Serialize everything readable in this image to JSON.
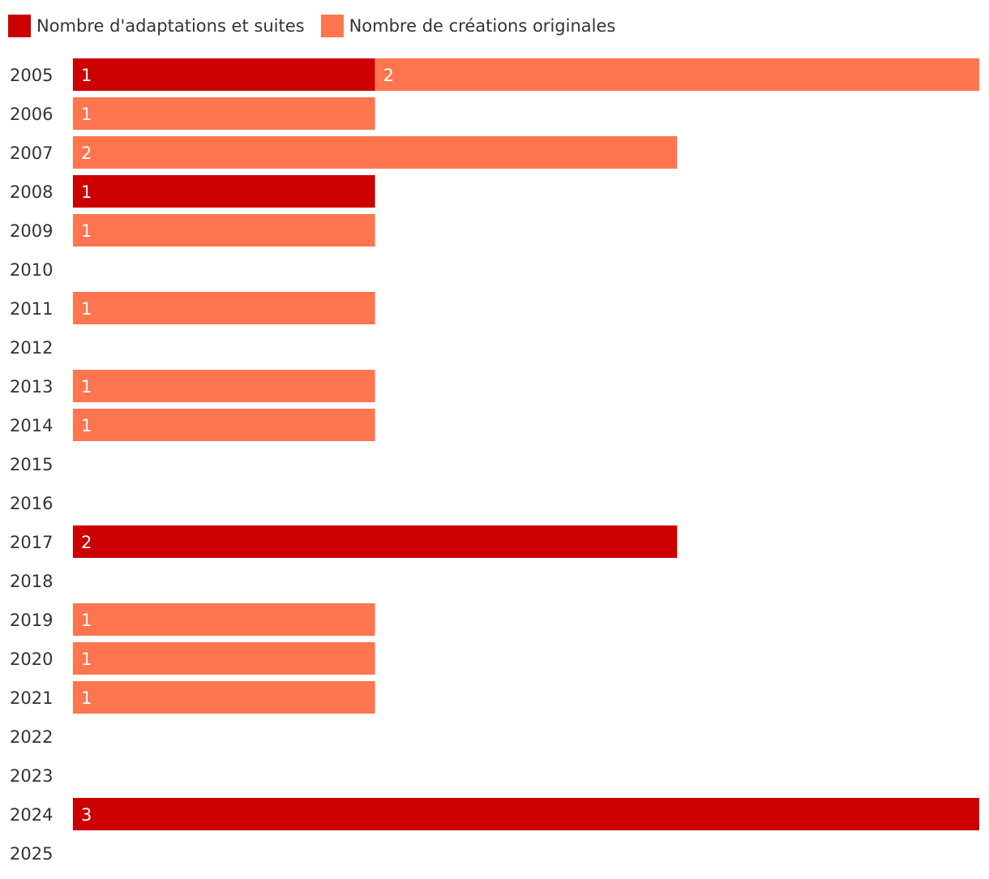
{
  "chart_data": {
    "type": "bar",
    "orientation": "horizontal",
    "stacked": true,
    "categories": [
      "2005",
      "2006",
      "2007",
      "2008",
      "2009",
      "2010",
      "2011",
      "2012",
      "2013",
      "2014",
      "2015",
      "2016",
      "2017",
      "2018",
      "2019",
      "2020",
      "2021",
      "2022",
      "2023",
      "2024",
      "2025"
    ],
    "series": [
      {
        "name": "Nombre d'adaptations et suites",
        "color": "#cc0000",
        "values": [
          1,
          0,
          0,
          1,
          0,
          0,
          0,
          0,
          0,
          0,
          0,
          0,
          2,
          0,
          0,
          0,
          0,
          0,
          0,
          3,
          0
        ]
      },
      {
        "name": "Nombre de créations originales",
        "color": "#ff7550",
        "values": [
          2,
          1,
          2,
          0,
          1,
          0,
          1,
          0,
          1,
          1,
          0,
          0,
          0,
          0,
          1,
          1,
          1,
          0,
          0,
          0,
          0
        ]
      }
    ],
    "xlim": [
      0,
      3
    ],
    "legend_position": "top-left",
    "grid": false,
    "data_labels": true
  }
}
